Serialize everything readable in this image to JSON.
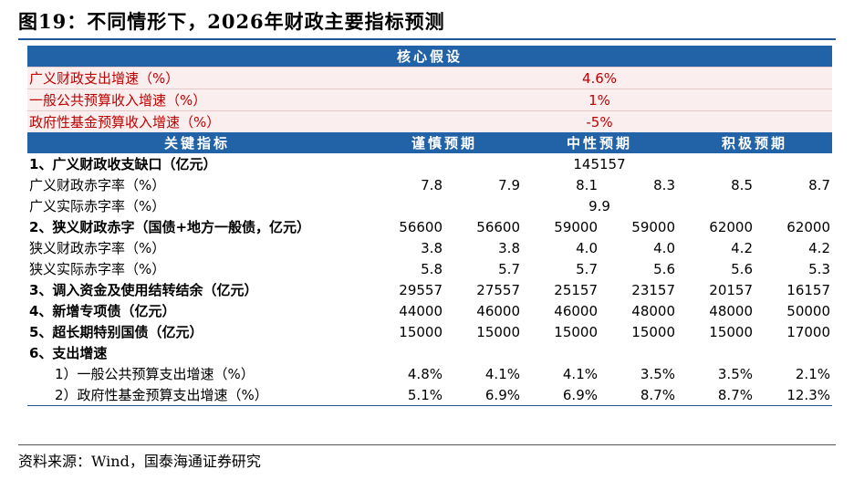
{
  "title": "图19：不同情形下，2026年财政主要指标预测",
  "table": {
    "core_header": "核心假设",
    "assumptions": [
      {
        "label": "广义财政支出增速（%）",
        "value": "4.6%"
      },
      {
        "label": "一般公共预算收入增速（%）",
        "value": "1%"
      },
      {
        "label": "政府性基金预算收入增速（%）",
        "value": "-5%"
      }
    ],
    "columns": [
      "关键指标",
      "谨慎预期",
      "中性预期",
      "积极预期"
    ],
    "rows": [
      {
        "label": "1、广义财政收支缺口（亿元）",
        "values": [
          "145157"
        ]
      },
      {
        "label": "广义财政赤字率（%）",
        "values": [
          "7.8",
          "7.9",
          "8.1",
          "8.3",
          "8.5",
          "8.7"
        ]
      },
      {
        "label": "广义实际赤字率（%）",
        "values": [
          "9.9"
        ]
      },
      {
        "label": "2、狭义财政赤字（国债+地方一般债，亿元）",
        "values": [
          "56600",
          "56600",
          "59000",
          "59000",
          "62000",
          "62000"
        ]
      },
      {
        "label": "狭义财政赤字率（%）",
        "values": [
          "3.8",
          "3.8",
          "4.0",
          "4.0",
          "4.2",
          "4.2"
        ]
      },
      {
        "label": "狭义实际赤字率（%）",
        "values": [
          "5.8",
          "5.7",
          "5.7",
          "5.6",
          "5.6",
          "5.3"
        ]
      },
      {
        "label": "3、调入资金及使用结转结余（亿元）",
        "values": [
          "29557",
          "27557",
          "25157",
          "23157",
          "20157",
          "16157"
        ]
      },
      {
        "label": "4、新增专项债（亿元）",
        "values": [
          "44000",
          "46000",
          "46000",
          "48000",
          "48000",
          "50000"
        ]
      },
      {
        "label": "5、超长期特别国债（亿元）",
        "values": [
          "15000",
          "15000",
          "15000",
          "15000",
          "15000",
          "17000"
        ]
      },
      {
        "label": "6、支出增速",
        "values": []
      },
      {
        "label": "1）一般公共预算支出增速（%）",
        "values": [
          "4.8%",
          "4.1%",
          "4.1%",
          "3.5%",
          "3.5%",
          "2.1%"
        ]
      },
      {
        "label": "2）政府性基金预算支出增速（%）",
        "values": [
          "5.1%",
          "6.9%",
          "6.9%",
          "8.7%",
          "8.7%",
          "12.3%"
        ]
      }
    ]
  },
  "source": "资料来源：Wind，国泰海通证券研究"
}
